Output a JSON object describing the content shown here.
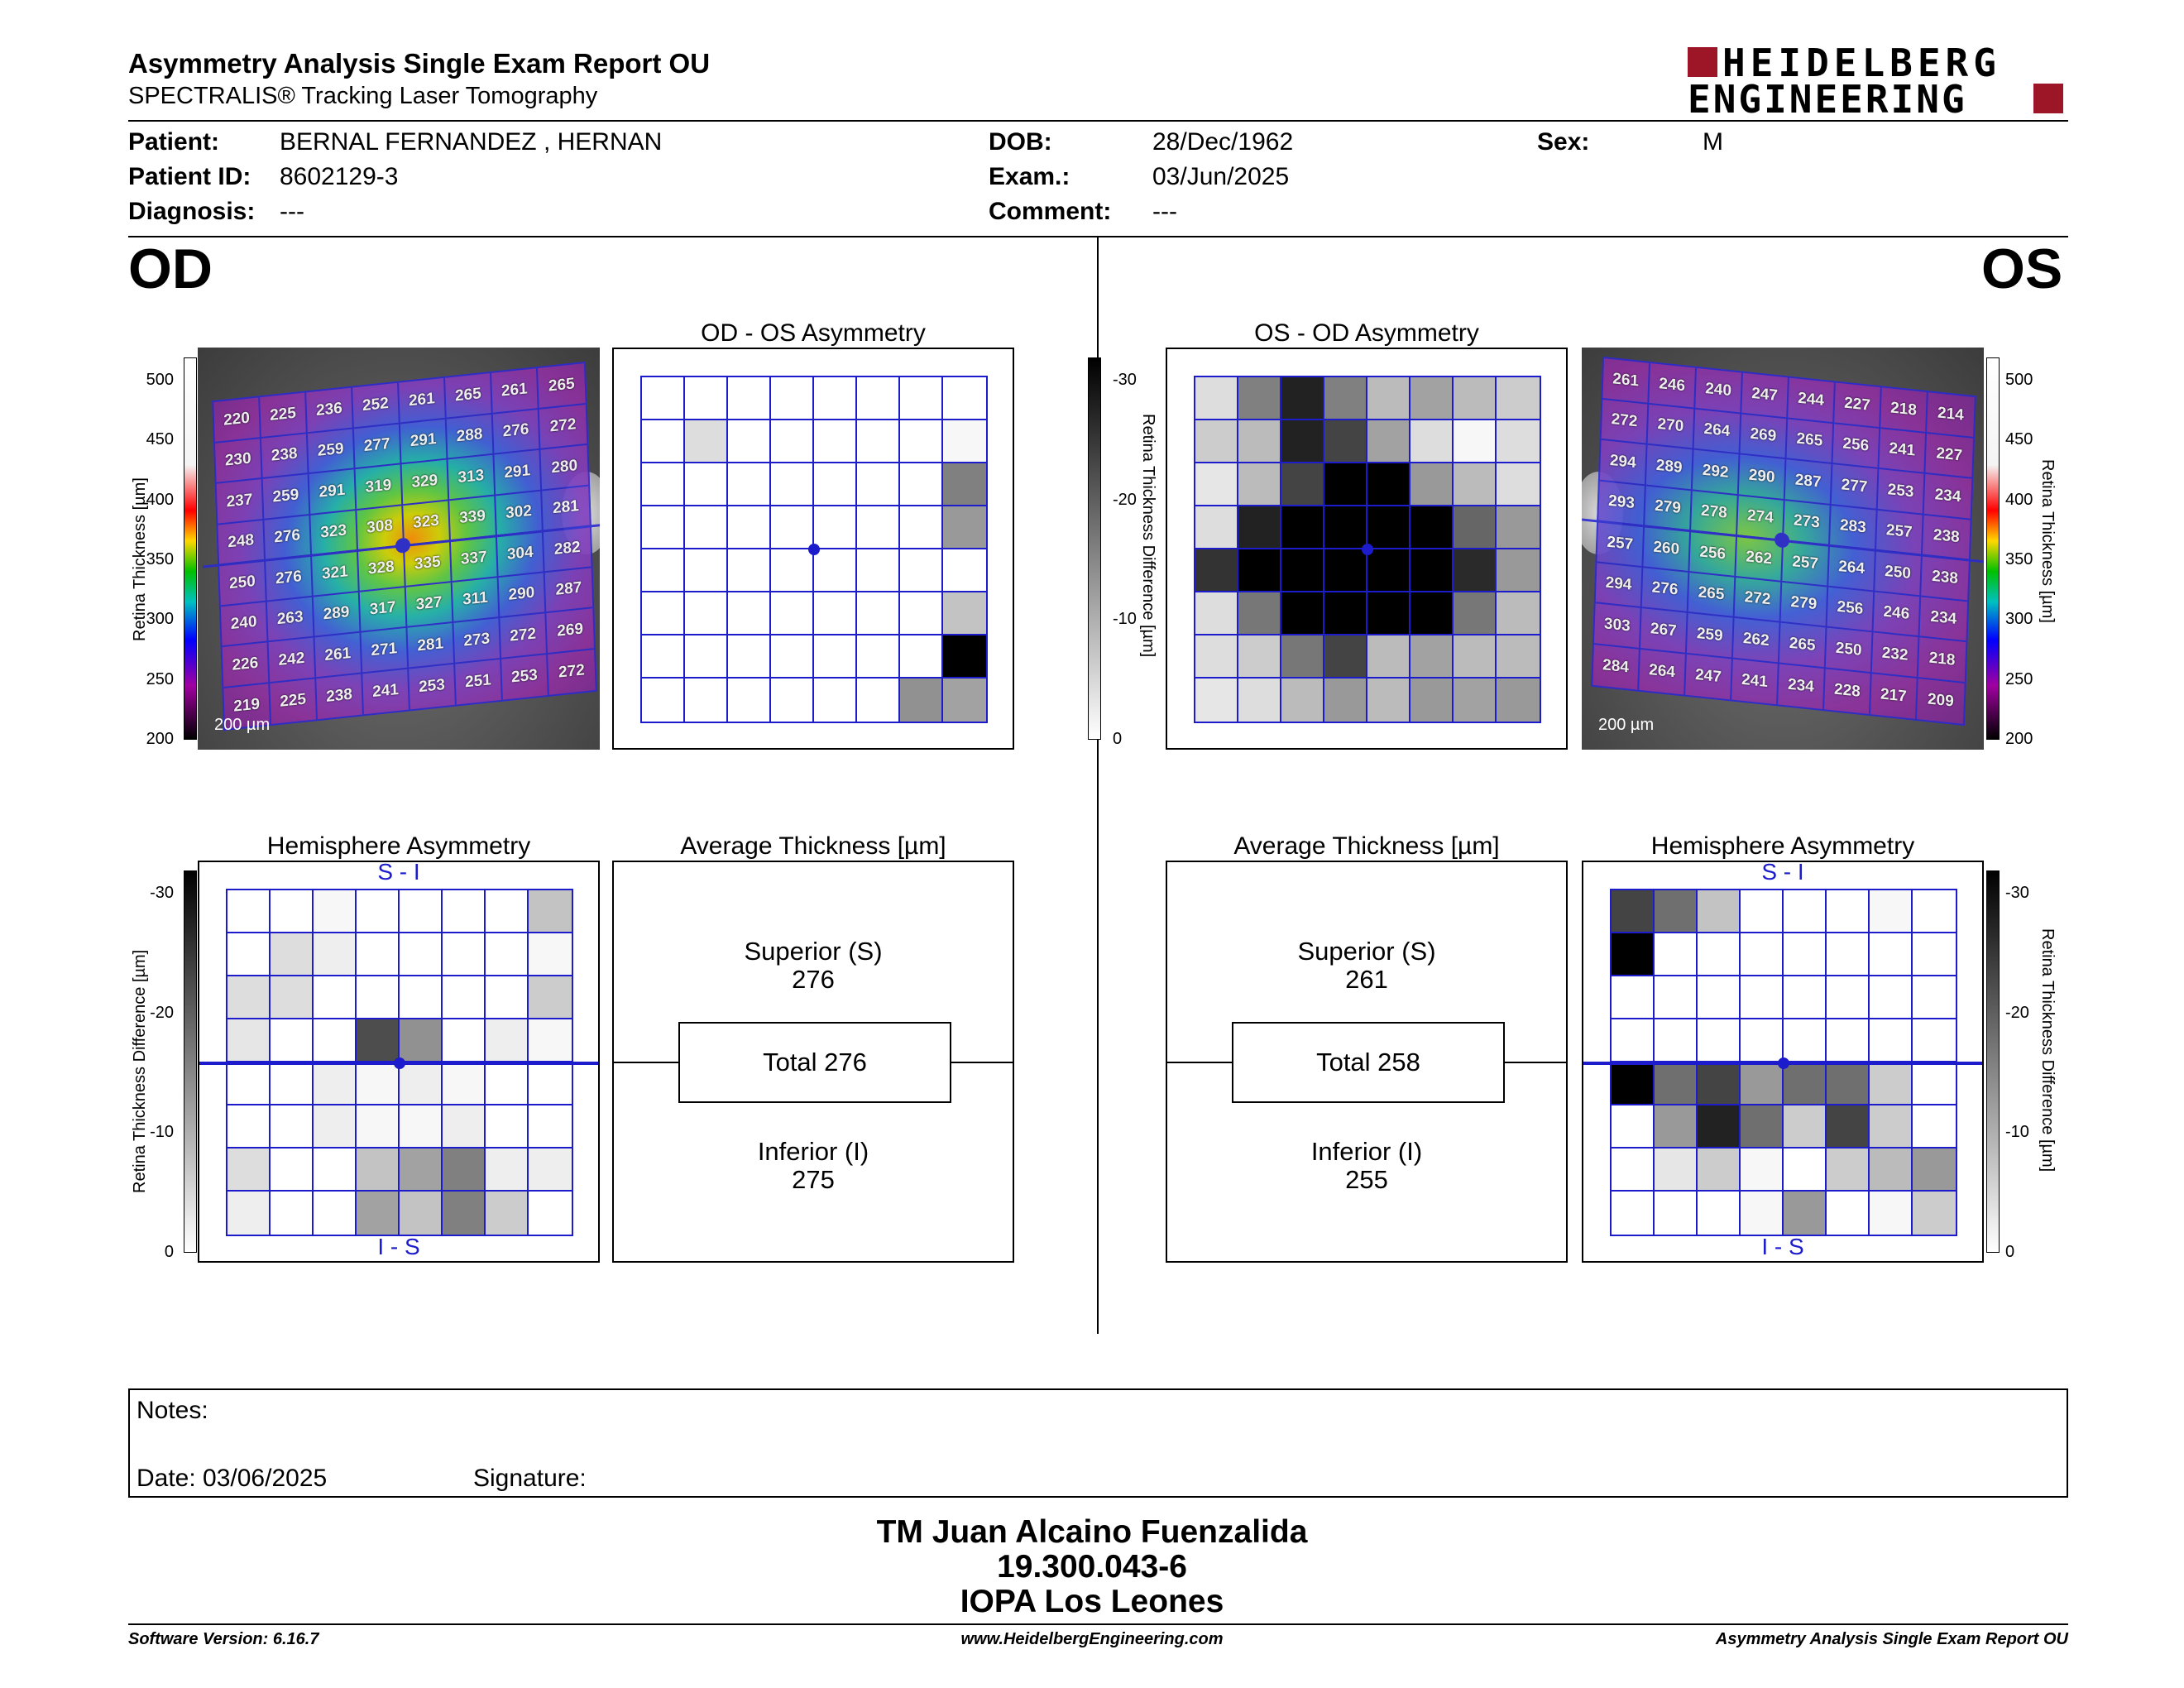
{
  "header": {
    "title": "Asymmetry Analysis Single Exam Report OU",
    "subtitle": "SPECTRALIS® Tracking Laser Tomography",
    "logo_line1": "HEIDELBERG",
    "logo_line2": "ENGINEERING"
  },
  "patient": {
    "patient_label": "Patient:",
    "patient_value": "BERNAL FERNANDEZ , HERNAN",
    "id_label": "Patient ID:",
    "id_value": "8602129-3",
    "diagnosis_label": "Diagnosis:",
    "diagnosis_value": "---",
    "dob_label": "DOB:",
    "dob_value": "28/Dec/1962",
    "exam_label": "Exam.:",
    "exam_value": "03/Jun/2025",
    "comment_label": "Comment:",
    "comment_value": "---",
    "sex_label": "Sex:",
    "sex_value": "M"
  },
  "eyes": {
    "od": "OD",
    "os": "OS"
  },
  "panels": {
    "od_os_title": "OD - OS Asymmetry",
    "os_od_title": "OS - OD Asymmetry",
    "hemi_title": "Hemisphere Asymmetry",
    "avg_title": "Average Thickness [µm]",
    "si_label": "S - I",
    "is_label": "I - S",
    "scale_label": "200 µm",
    "thickness_axis": "Retina Thickness [µm]",
    "diff_axis": "Retina Thickness Difference [µm]",
    "thickness_ticks": [
      "500",
      "450",
      "400",
      "350",
      "300",
      "250",
      "200"
    ],
    "diff_ticks": [
      "-30",
      "-20",
      "-10",
      "0"
    ]
  },
  "od_thickness": [
    [
      "220",
      "225",
      "236",
      "252",
      "261",
      "265",
      "261",
      "265"
    ],
    [
      "230",
      "238",
      "259",
      "277",
      "291",
      "288",
      "276",
      "272"
    ],
    [
      "237",
      "259",
      "291",
      "319",
      "329",
      "313",
      "291",
      "280"
    ],
    [
      "248",
      "276",
      "323",
      "308",
      "323",
      "339",
      "302",
      "281"
    ],
    [
      "250",
      "276",
      "321",
      "328",
      "335",
      "337",
      "304",
      "282"
    ],
    [
      "240",
      "263",
      "289",
      "317",
      "327",
      "311",
      "290",
      "287"
    ],
    [
      "226",
      "242",
      "261",
      "271",
      "281",
      "273",
      "272",
      "269"
    ],
    [
      "219",
      "225",
      "238",
      "241",
      "253",
      "251",
      "253",
      "272"
    ]
  ],
  "os_thickness": [
    [
      "261",
      "246",
      "240",
      "247",
      "244",
      "227",
      "218",
      "214"
    ],
    [
      "272",
      "270",
      "264",
      "269",
      "265",
      "256",
      "241",
      "227"
    ],
    [
      "294",
      "289",
      "292",
      "290",
      "287",
      "277",
      "253",
      "234"
    ],
    [
      "293",
      "279",
      "278",
      "274",
      "273",
      "283",
      "257",
      "238"
    ],
    [
      "257",
      "260",
      "256",
      "262",
      "257",
      "264",
      "250",
      "238"
    ],
    [
      "294",
      "276",
      "265",
      "272",
      "279",
      "256",
      "246",
      "234"
    ],
    [
      "303",
      "267",
      "259",
      "262",
      "265",
      "250",
      "232",
      "218"
    ],
    [
      "284",
      "264",
      "247",
      "241",
      "234",
      "228",
      "217",
      "209"
    ]
  ],
  "od_os_asym": [
    [
      0,
      0,
      0,
      0,
      0,
      0,
      0,
      0
    ],
    [
      0,
      4,
      0,
      0,
      0,
      0,
      0,
      1
    ],
    [
      0,
      0,
      0,
      0,
      0,
      0,
      0,
      15
    ],
    [
      0,
      0,
      0,
      0,
      0,
      0,
      0,
      12
    ],
    [
      0,
      0,
      0,
      0,
      0,
      0,
      0,
      0
    ],
    [
      0,
      0,
      0,
      0,
      0,
      0,
      0,
      7
    ],
    [
      0,
      0,
      0,
      0,
      0,
      0,
      0,
      30
    ],
    [
      0,
      0,
      0,
      0,
      0,
      0,
      13,
      11
    ]
  ],
  "os_od_asym": [
    [
      4,
      15,
      26,
      15,
      8,
      11,
      8,
      6
    ],
    [
      6,
      8,
      26,
      22,
      11,
      4,
      1,
      4
    ],
    [
      3,
      8,
      22,
      30,
      30,
      12,
      8,
      4
    ],
    [
      4,
      26,
      30,
      30,
      30,
      30,
      18,
      12
    ],
    [
      24,
      30,
      30,
      30,
      30,
      30,
      25,
      12
    ],
    [
      4,
      16,
      30,
      30,
      30,
      30,
      16,
      8
    ],
    [
      4,
      6,
      16,
      22,
      8,
      11,
      8,
      8
    ],
    [
      3,
      4,
      8,
      12,
      8,
      12,
      11,
      12
    ]
  ],
  "od_hemi": [
    [
      0,
      0,
      1,
      0,
      0,
      0,
      0,
      7
    ],
    [
      0,
      4,
      2,
      0,
      0,
      0,
      0,
      1
    ],
    [
      4,
      4,
      0,
      0,
      0,
      0,
      0,
      6
    ],
    [
      3,
      0,
      0,
      21,
      13,
      0,
      2,
      1
    ],
    [
      0,
      0,
      2,
      1,
      2,
      1,
      0,
      0
    ],
    [
      0,
      0,
      2,
      1,
      1,
      2,
      0,
      0
    ],
    [
      4,
      0,
      0,
      7,
      11,
      15,
      2,
      2
    ],
    [
      2,
      0,
      0,
      11,
      7,
      15,
      6,
      0
    ]
  ],
  "os_hemi": [
    [
      22,
      17,
      7,
      0,
      0,
      0,
      1,
      0
    ],
    [
      30,
      0,
      0,
      0,
      0,
      0,
      0,
      0
    ],
    [
      0,
      0,
      0,
      0,
      0,
      0,
      0,
      0
    ],
    [
      0,
      0,
      0,
      0,
      0,
      0,
      0,
      0
    ],
    [
      30,
      17,
      22,
      12,
      17,
      17,
      6,
      0
    ],
    [
      0,
      12,
      26,
      17,
      6,
      22,
      6,
      0
    ],
    [
      0,
      3,
      6,
      1,
      0,
      6,
      8,
      12
    ],
    [
      0,
      0,
      0,
      1,
      12,
      0,
      1,
      6
    ]
  ],
  "od_avg": {
    "sup_label": "Superior (S)",
    "sup": "276",
    "total": "Total 276",
    "inf_label": "Inferior (I)",
    "inf": "275"
  },
  "os_avg": {
    "sup_label": "Superior (S)",
    "sup": "261",
    "total": "Total 258",
    "inf_label": "Inferior (I)",
    "inf": "255"
  },
  "notes": {
    "label": "Notes:",
    "date": "Date: 03/06/2025",
    "signature": "Signature:"
  },
  "operator": {
    "name": "TM Juan Alcaino Fuenzalida",
    "rut": "19.300.043-6",
    "center": "IOPA Los Leones"
  },
  "footer": {
    "version": "Software Version: 6.16.7",
    "url": "www.HeidelbergEngineering.com",
    "report": "Asymmetry Analysis Single Exam Report OU"
  },
  "colors": {
    "grid_blue": "#1c1ccc",
    "logo_red": "#9c1628"
  }
}
